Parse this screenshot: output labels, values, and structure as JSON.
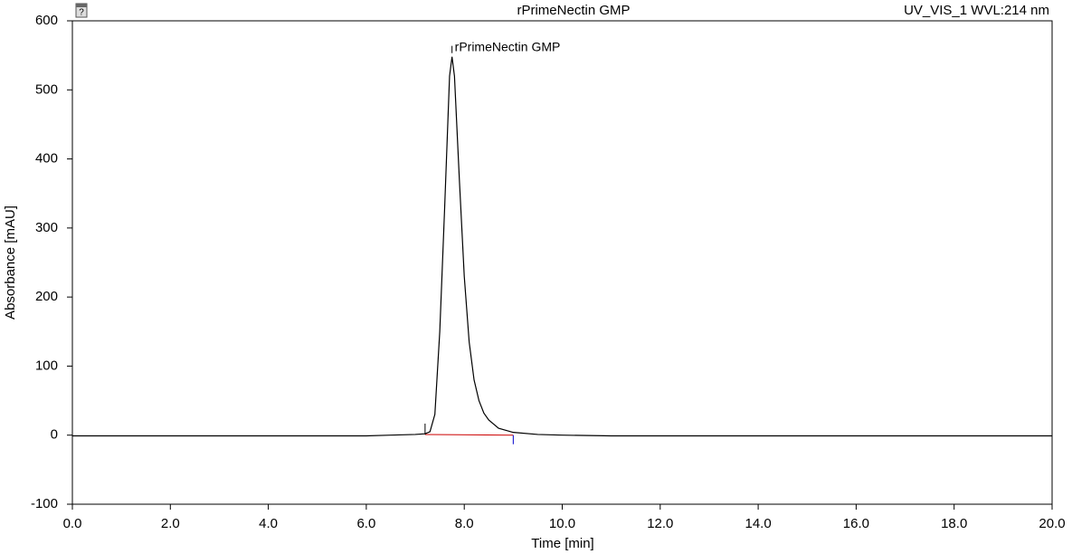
{
  "chart_data": {
    "type": "line",
    "title": "rPrimeNectin GMP",
    "channel": "UV_VIS_1 WVL:214 nm",
    "x_label": "Time [min]",
    "y_label": "Absorbance [mAU]",
    "x": [
      0,
      1,
      2,
      3,
      4,
      5,
      6,
      6.5,
      7.0,
      7.2,
      7.3,
      7.4,
      7.5,
      7.6,
      7.7,
      7.75,
      7.8,
      7.9,
      8.0,
      8.1,
      8.2,
      8.3,
      8.4,
      8.5,
      8.7,
      9.0,
      9.5,
      10,
      11,
      12,
      13,
      14,
      15,
      16,
      17,
      18,
      19,
      20
    ],
    "values": [
      -1,
      -1,
      -1,
      -1,
      -1,
      -1,
      -1,
      0,
      1,
      2,
      5,
      30,
      150,
      330,
      520,
      548,
      520,
      370,
      230,
      135,
      80,
      50,
      32,
      22,
      10,
      4,
      1,
      0,
      -1,
      -1,
      -1,
      -1,
      -1,
      -1,
      -1,
      -1,
      -1,
      -1
    ],
    "color": "#000000",
    "baseline": {
      "x": [
        7.2,
        9.0
      ],
      "values": [
        1,
        0
      ],
      "color": "#cc0000"
    },
    "peak_label": {
      "text": "rPrimeNectin GMP",
      "x": 7.75,
      "value": 548
    },
    "xlim": [
      0,
      20
    ],
    "ylim": [
      -100,
      600
    ],
    "xticks": [
      {
        "value": 0,
        "label": "0.0"
      },
      {
        "value": 2,
        "label": "2.0"
      },
      {
        "value": 4,
        "label": "4.0"
      },
      {
        "value": 6,
        "label": "6.0"
      },
      {
        "value": 8,
        "label": "8.0"
      },
      {
        "value": 10,
        "label": "10.0"
      },
      {
        "value": 12,
        "label": "12.0"
      },
      {
        "value": 14,
        "label": "14.0"
      },
      {
        "value": 16,
        "label": "16.0"
      },
      {
        "value": 18,
        "label": "18.0"
      },
      {
        "value": 20,
        "label": "20.0"
      }
    ],
    "yticks": [
      -100,
      0,
      100,
      200,
      300,
      400,
      500,
      600
    ]
  }
}
